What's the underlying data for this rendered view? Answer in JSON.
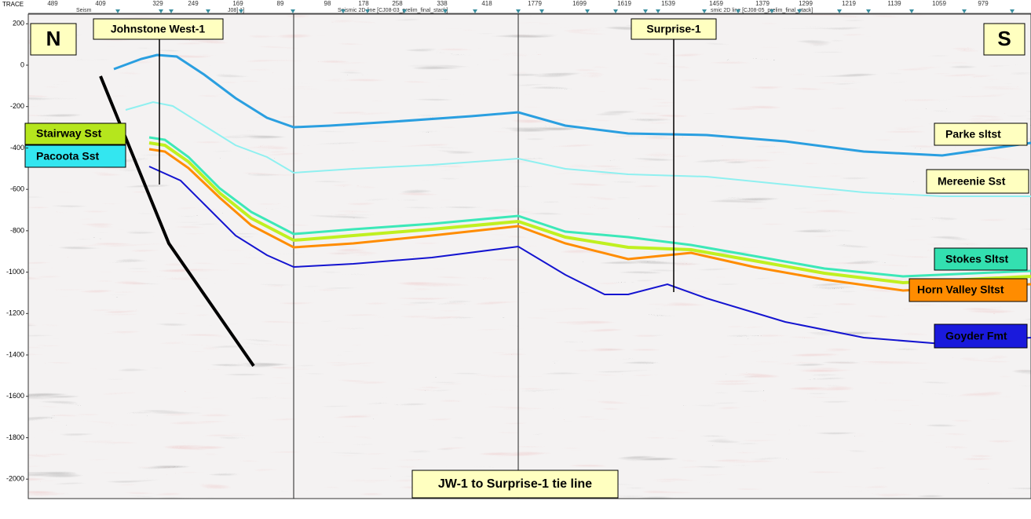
{
  "header": {
    "trace_label": "TRACE",
    "traces": [
      489,
      409,
      329,
      249,
      169,
      89,
      98,
      178,
      258,
      338,
      418,
      1779,
      1699,
      1619,
      1539,
      1459,
      1379,
      1299,
      1219,
      1139,
      1059,
      979
    ],
    "line_names": [
      "Seism",
      "J08] 1]",
      "Seismic 2D line [CJ08-03_prelim_final_stack]",
      "smic 2D line [CJ08-05_prelim_final_stack]"
    ]
  },
  "axis": {
    "ticks": [
      200,
      0,
      -200,
      -400,
      -600,
      -800,
      -1000,
      -1200,
      -1400,
      -1600,
      -1800,
      -2000
    ]
  },
  "compass": {
    "north": "N",
    "south": "S"
  },
  "wells": [
    "Johnstone West-1",
    "Surprise-1"
  ],
  "formations": {
    "left": [
      "Stairway Sst",
      "Pacoota Sst"
    ],
    "right": [
      "Parke sltst",
      "Mereenie Sst",
      "Stokes Sltst",
      "Horn Valley Sltst",
      "Goyder Fmt"
    ]
  },
  "caption": "JW-1 to Surprise-1 tie line"
}
